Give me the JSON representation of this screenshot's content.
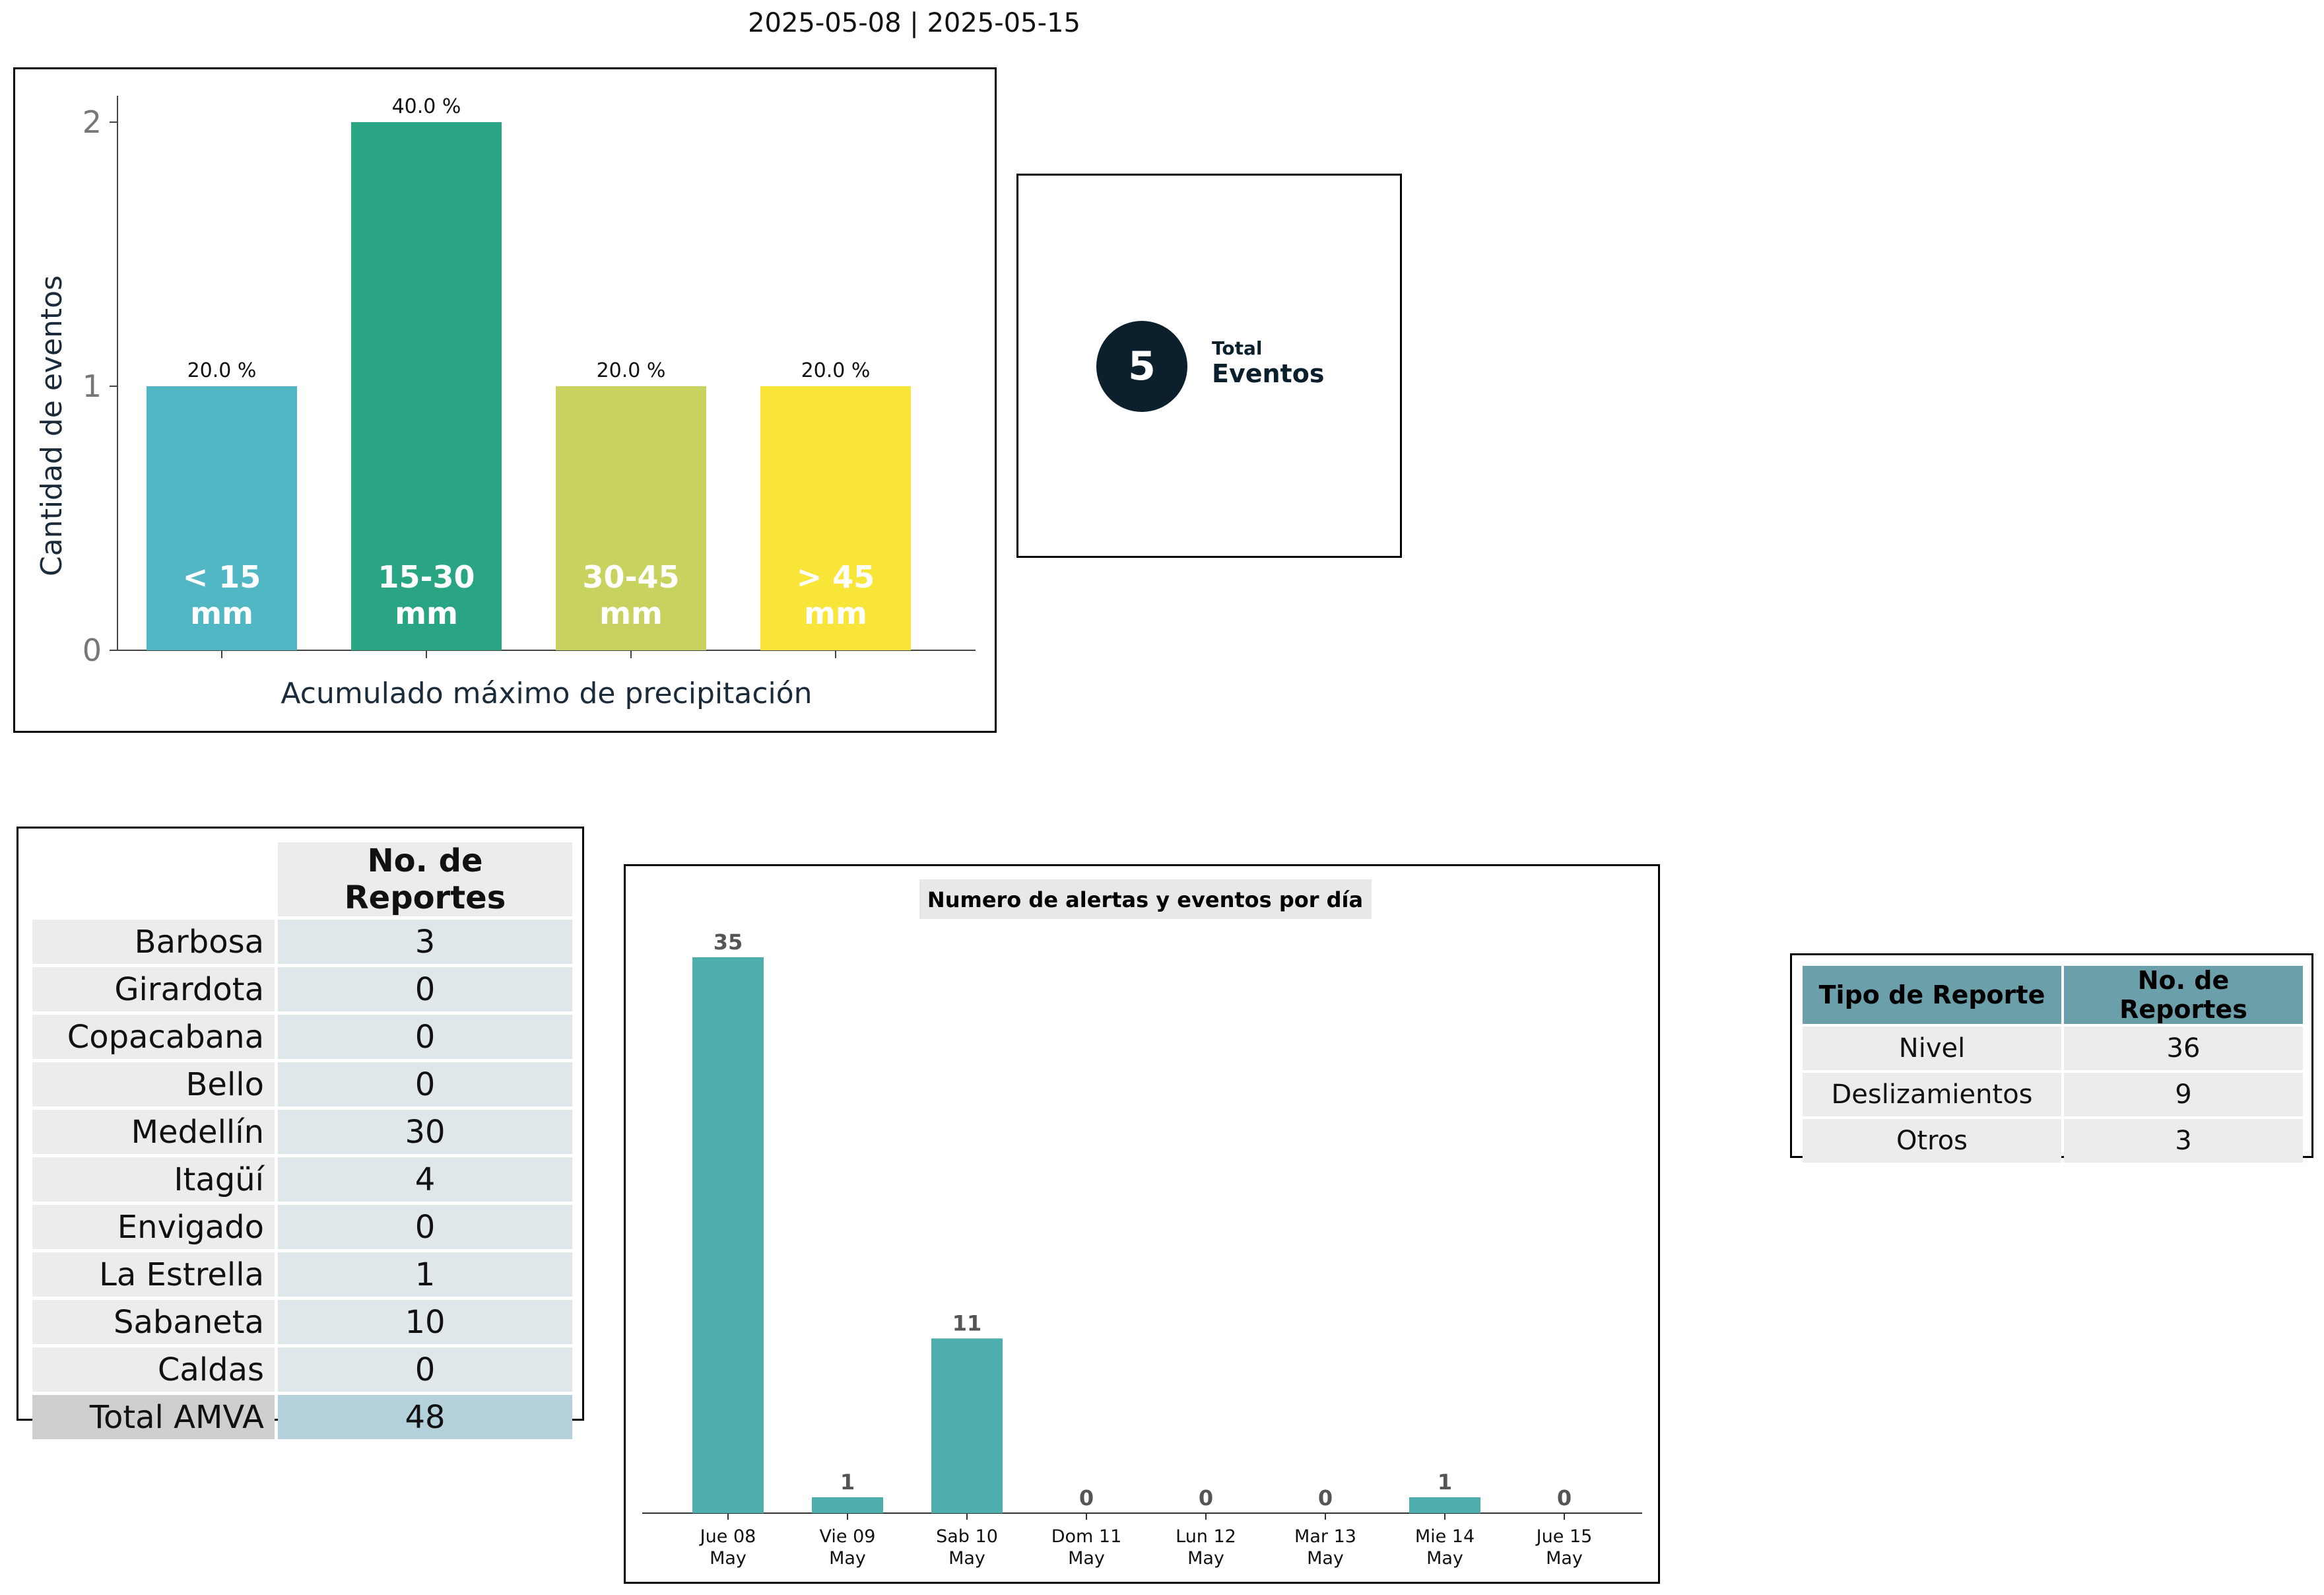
{
  "header": {
    "title": "2025-05-08  |  2025-05-15"
  },
  "chart_data": [
    {
      "type": "bar",
      "title": "",
      "xlabel": "Acumulado máximo de precipitación",
      "ylabel": "Cantidad de eventos",
      "ylim": [
        0,
        2.1
      ],
      "yticks": [
        "0",
        "1",
        "2"
      ],
      "categories": [
        "< 15 mm",
        "15-30 mm",
        "30-45 mm",
        "> 45 mm"
      ],
      "category_lines": [
        [
          "< 15",
          "mm"
        ],
        [
          "15-30",
          "mm"
        ],
        [
          "30-45",
          "mm"
        ],
        [
          "> 45",
          "mm"
        ]
      ],
      "values": [
        1,
        2,
        1,
        1
      ],
      "percent_labels": [
        "20.0 %",
        "40.0 %",
        "20.0 %",
        "20.0 %"
      ],
      "colors": [
        "#52b7c5",
        "#29a584",
        "#c8d35f",
        "#f8e538"
      ],
      "grid": false
    },
    {
      "type": "bar",
      "title": "Numero de alertas y eventos por día",
      "xlabel": "",
      "ylabel": "",
      "categories": [
        "Jue 08 May",
        "Vie 09 May",
        "Sab 10 May",
        "Dom 11 May",
        "Lun 12 May",
        "Mar 13 May",
        "Mie 14 May",
        "Jue 15 May"
      ],
      "category_lines": [
        [
          "Jue 08",
          "May"
        ],
        [
          "Vie 09",
          "May"
        ],
        [
          "Sab 10",
          "May"
        ],
        [
          "Dom 11",
          "May"
        ],
        [
          "Lun 12",
          "May"
        ],
        [
          "Mar 13",
          "May"
        ],
        [
          "Mie 14",
          "May"
        ],
        [
          "Jue 15",
          "May"
        ]
      ],
      "values": [
        35,
        1,
        11,
        0,
        0,
        0,
        1,
        0
      ],
      "ylim": [
        0,
        37
      ],
      "color": "#4eadad",
      "grid": false
    },
    {
      "type": "table",
      "columns": [
        "",
        "No. de Reportes"
      ],
      "rows": [
        [
          "Barbosa",
          "3"
        ],
        [
          "Girardota",
          "0"
        ],
        [
          "Copacabana",
          "0"
        ],
        [
          "Bello",
          "0"
        ],
        [
          "Medellín",
          "30"
        ],
        [
          "Itagüí",
          "4"
        ],
        [
          "Envigado",
          "0"
        ],
        [
          "La Estrella",
          "1"
        ],
        [
          "Sabaneta",
          "10"
        ],
        [
          "Caldas",
          "0"
        ]
      ],
      "total": [
        "Total AMVA",
        "48"
      ]
    },
    {
      "type": "table",
      "columns": [
        "Tipo de Reporte",
        "No. de Reportes"
      ],
      "rows": [
        [
          "Nivel",
          "36"
        ],
        [
          "Deslizamientos",
          "9"
        ],
        [
          "Otros",
          "3"
        ]
      ]
    }
  ],
  "summary": {
    "total_value": "5",
    "label_small": "Total",
    "label_big": "Eventos"
  }
}
